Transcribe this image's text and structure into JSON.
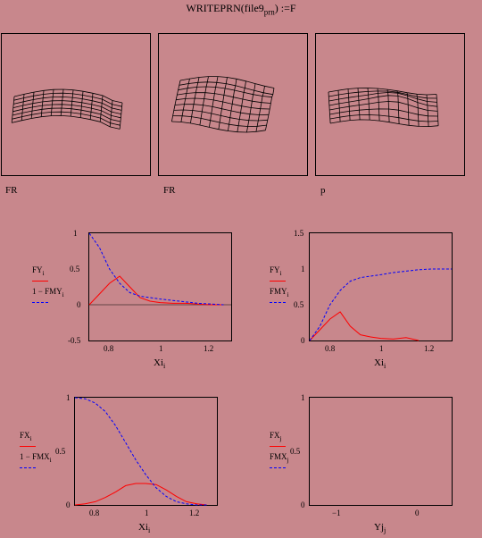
{
  "header": {
    "expr_prefix": "WRITEPRN",
    "file": "file9",
    "file_sub": "prn",
    "assign": ") :=F"
  },
  "surfaces": [
    {
      "label": "FR"
    },
    {
      "label": "FR"
    },
    {
      "label": "p"
    }
  ],
  "colors": {
    "bg": "#c8878c",
    "red": "#ff0000",
    "blue": "#0000ff"
  },
  "plots": [
    {
      "id": "fy-fmy-left",
      "xlabel": "Xi",
      "xlabel_sub": "i",
      "xticks": [
        "0.8",
        "1",
        "1.2"
      ],
      "yticks": [
        "1",
        "0.5",
        "0",
        "-0.5"
      ],
      "legend": [
        {
          "name": "FY",
          "sub": "i",
          "style": "red"
        },
        {
          "name": "1 − FMY",
          "sub": "i",
          "style": "blue"
        }
      ]
    },
    {
      "id": "fy-fmy-right",
      "xlabel": "Xi",
      "xlabel_sub": "i",
      "xticks": [
        "0.8",
        "1",
        "1.2"
      ],
      "yticks": [
        "1.5",
        "1",
        "0.5",
        "0"
      ],
      "legend": [
        {
          "name": "FY",
          "sub": "i",
          "style": "red"
        },
        {
          "name": "FMY",
          "sub": "i",
          "style": "blue"
        }
      ]
    },
    {
      "id": "fx-fmx",
      "xlabel": "Xi",
      "xlabel_sub": "i",
      "xticks": [
        "0.8",
        "1",
        "1.2"
      ],
      "yticks": [
        "1",
        "0.5",
        "0"
      ],
      "legend": [
        {
          "name": "FX",
          "sub": "i",
          "style": "red"
        },
        {
          "name": "1 − FMX",
          "sub": "i",
          "style": "blue"
        }
      ]
    },
    {
      "id": "fx-fmx-empty",
      "xlabel": "Yj",
      "xlabel_sub": "j",
      "xticks": [
        "−1",
        "0"
      ],
      "yticks": [
        "1",
        "0.5",
        "0"
      ],
      "legend": [
        {
          "name": "FX",
          "sub": "j",
          "style": "red"
        },
        {
          "name": "FMX",
          "sub": "j",
          "style": "blue"
        }
      ]
    }
  ],
  "chart_data": [
    {
      "type": "line",
      "xlim": [
        0.72,
        1.28
      ],
      "ylim": [
        -0.5,
        1
      ],
      "series": [
        {
          "name": "FY_i",
          "x": [
            0.72,
            0.76,
            0.8,
            0.84,
            0.88,
            0.92,
            0.96,
            1.0,
            1.05,
            1.1,
            1.15,
            1.2,
            1.25
          ],
          "y": [
            0.0,
            0.15,
            0.3,
            0.4,
            0.25,
            0.1,
            0.05,
            0.03,
            0.02,
            0.02,
            0.01,
            0.0,
            0.0
          ]
        },
        {
          "name": "1 − FMY_i",
          "x": [
            0.72,
            0.76,
            0.8,
            0.84,
            0.88,
            0.92,
            0.96,
            1.0,
            1.05,
            1.1,
            1.15,
            1.2,
            1.25
          ],
          "y": [
            1.0,
            0.8,
            0.5,
            0.3,
            0.17,
            0.12,
            0.1,
            0.08,
            0.06,
            0.04,
            0.02,
            0.01,
            0.0
          ]
        }
      ]
    },
    {
      "type": "line",
      "xlim": [
        0.72,
        1.28
      ],
      "ylim": [
        0,
        1.5
      ],
      "series": [
        {
          "name": "FY_i",
          "x": [
            0.72,
            0.76,
            0.8,
            0.84,
            0.88,
            0.92,
            0.96,
            1.0,
            1.05,
            1.1,
            1.15
          ],
          "y": [
            0.0,
            0.15,
            0.3,
            0.4,
            0.2,
            0.08,
            0.05,
            0.03,
            0.02,
            0.04,
            0.0
          ]
        },
        {
          "name": "FMY_i",
          "x": [
            0.72,
            0.76,
            0.8,
            0.84,
            0.88,
            0.92,
            0.96,
            1.0,
            1.05,
            1.1,
            1.15,
            1.2,
            1.25,
            1.28
          ],
          "y": [
            0.0,
            0.2,
            0.5,
            0.7,
            0.83,
            0.88,
            0.9,
            0.92,
            0.95,
            0.97,
            0.99,
            1.0,
            1.0,
            1.0
          ]
        }
      ]
    },
    {
      "type": "line",
      "xlim": [
        0.72,
        1.28
      ],
      "ylim": [
        0,
        1
      ],
      "series": [
        {
          "name": "FX_i",
          "x": [
            0.72,
            0.76,
            0.8,
            0.84,
            0.88,
            0.92,
            0.96,
            1.0,
            1.04,
            1.08,
            1.12,
            1.16,
            1.2,
            1.24
          ],
          "y": [
            0.0,
            0.01,
            0.03,
            0.07,
            0.12,
            0.18,
            0.2,
            0.2,
            0.19,
            0.14,
            0.08,
            0.03,
            0.01,
            0.0
          ]
        },
        {
          "name": "1 − FMX_i",
          "x": [
            0.72,
            0.76,
            0.8,
            0.84,
            0.88,
            0.92,
            0.96,
            1.0,
            1.04,
            1.08,
            1.12,
            1.16,
            1.2,
            1.24
          ],
          "y": [
            1.0,
            0.99,
            0.95,
            0.87,
            0.74,
            0.58,
            0.42,
            0.28,
            0.16,
            0.08,
            0.03,
            0.01,
            0.0,
            0.0
          ]
        }
      ]
    },
    {
      "type": "line",
      "xlim": [
        -1.4,
        0.4
      ],
      "ylim": [
        0,
        1
      ],
      "series": []
    }
  ]
}
